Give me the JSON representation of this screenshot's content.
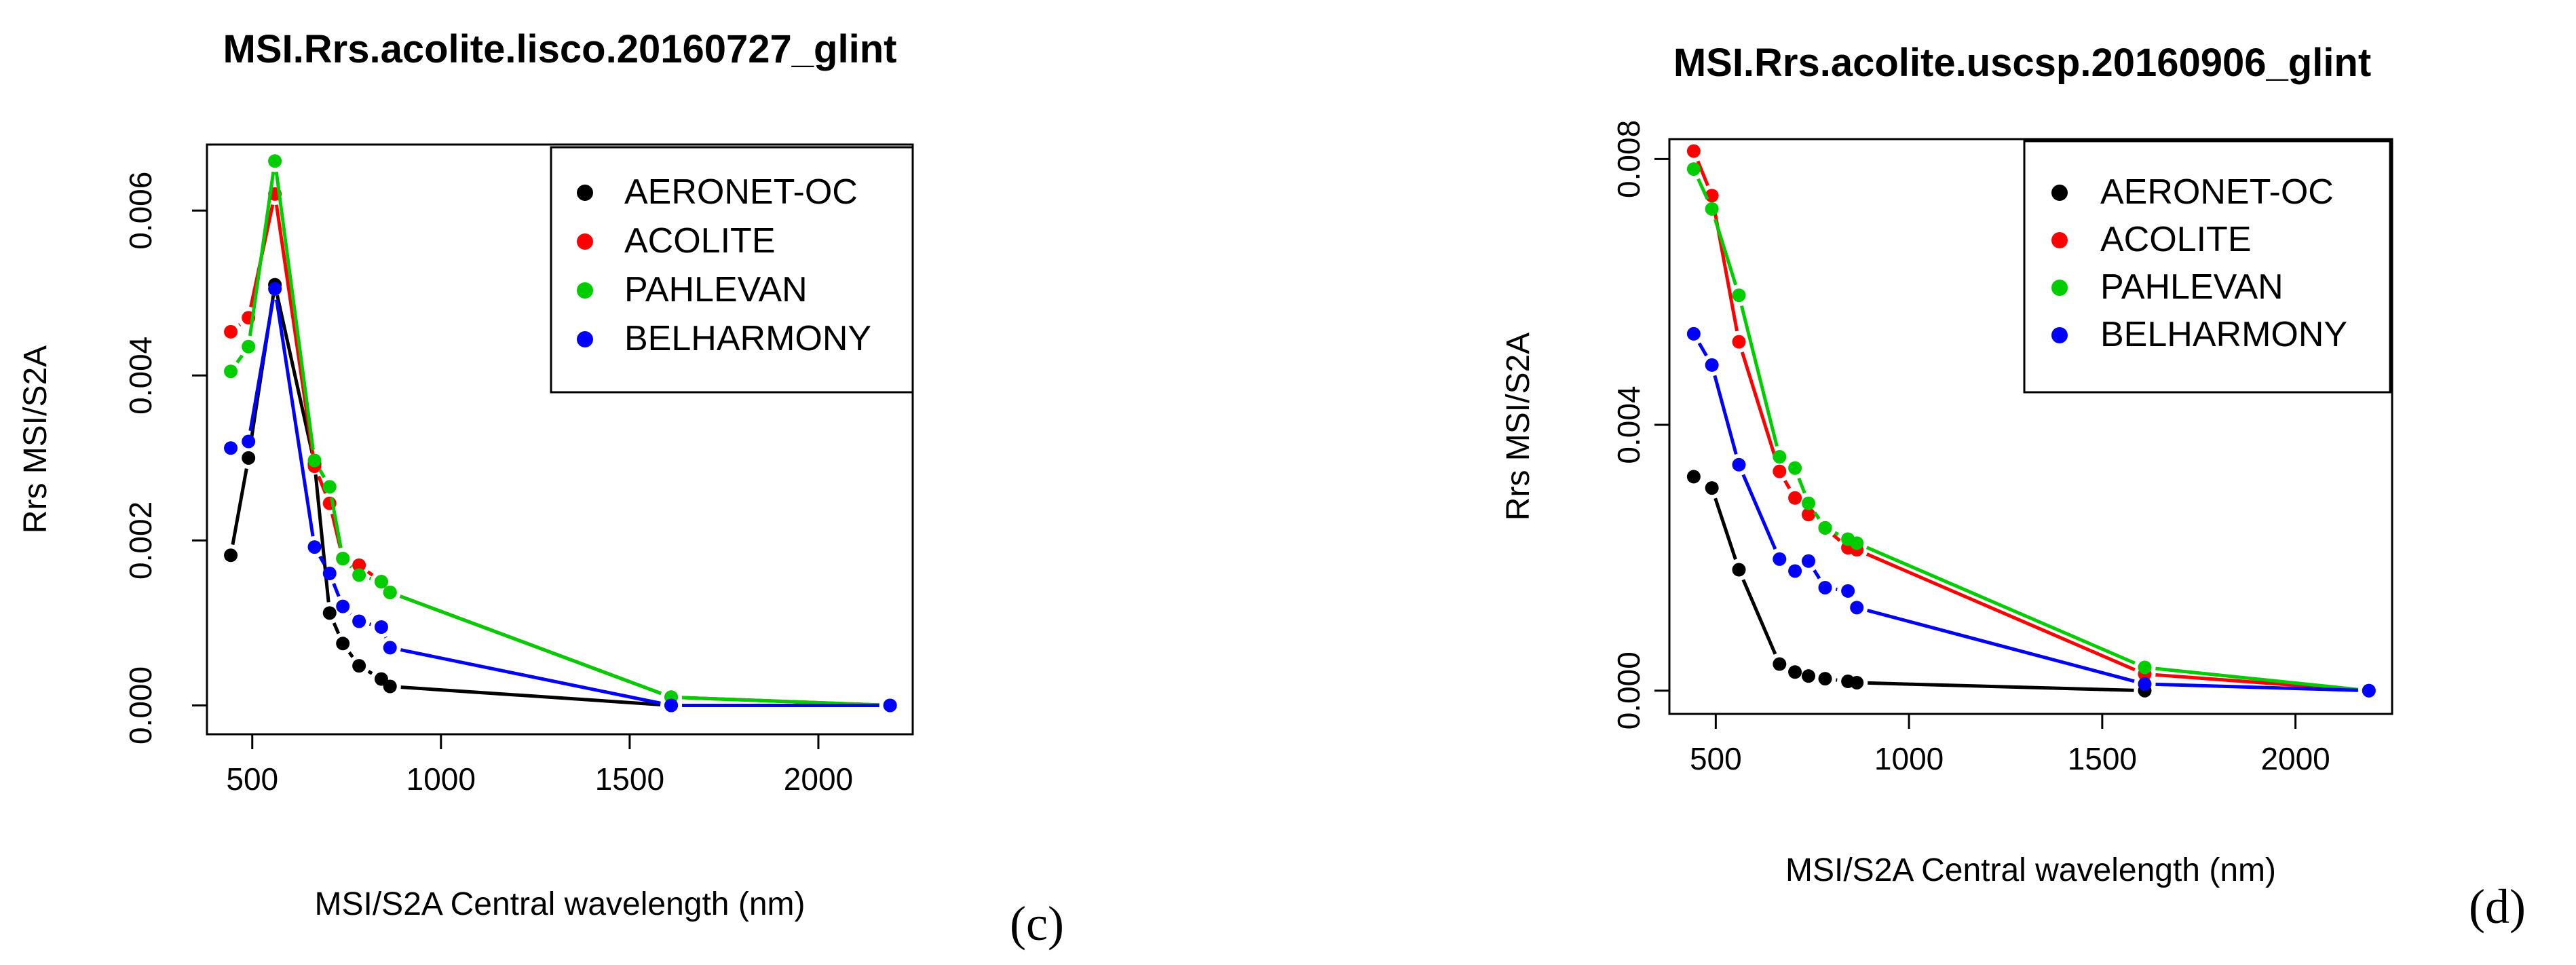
{
  "chart_data": [
    {
      "type": "line",
      "panel_label": "(c)",
      "title": "MSI.Rrs.acolite.lisco.20160727_glint",
      "xlabel": "MSI/S2A Central wavelength (nm)",
      "ylabel": "Rrs MSI/S2A",
      "xlim": [
        380,
        2250
      ],
      "ylim": [
        -0.00035,
        0.0068
      ],
      "xticks": [
        500,
        1000,
        1500,
        2000
      ],
      "xtick_labels": [
        "500",
        "1000",
        "1500",
        "2000"
      ],
      "yticks": [
        0,
        0.002,
        0.004,
        0.006
      ],
      "ytick_labels": [
        "0.000",
        "0.002",
        "0.004",
        "0.006"
      ],
      "legend_position": "top-right",
      "x": [
        443,
        490,
        560,
        665,
        705,
        740,
        783,
        842,
        865,
        1610,
        2190
      ],
      "series": [
        {
          "name": "AERONET-OC",
          "color": "#000000",
          "values": [
            0.00182,
            0.003,
            0.0051,
            0.00293,
            0.00112,
            0.00075,
            0.00048,
            0.00032,
            0.00023,
            0.0,
            null
          ]
        },
        {
          "name": "ACOLITE",
          "color": "#ff0000",
          "values": [
            0.00453,
            0.0047,
            0.0062,
            0.0029,
            0.00245,
            0.00178,
            0.0017,
            0.0015,
            0.00137,
            0.0001,
            0.0
          ]
        },
        {
          "name": "PAHLEVAN",
          "color": "#00cd00",
          "values": [
            0.00405,
            0.00435,
            0.0066,
            0.00297,
            0.00265,
            0.00178,
            0.00158,
            0.0015,
            0.00137,
            0.0001,
            0.0
          ]
        },
        {
          "name": "BELHARMONY",
          "color": "#0000ff",
          "values": [
            0.00312,
            0.0032,
            0.00505,
            0.00192,
            0.0016,
            0.0012,
            0.00102,
            0.00095,
            0.0007,
            0.0,
            0.0
          ]
        }
      ]
    },
    {
      "type": "line",
      "panel_label": "(d)",
      "title": "MSI.Rrs.acolite.uscsp.20160906_glint",
      "xlabel": "MSI/S2A Central wavelength (nm)",
      "ylabel": "Rrs MSI/S2A",
      "xlim": [
        380,
        2250
      ],
      "ylim": [
        -0.00035,
        0.0083
      ],
      "xticks": [
        500,
        1000,
        1500,
        2000
      ],
      "xtick_labels": [
        "500",
        "1000",
        "1500",
        "2000"
      ],
      "yticks": [
        0,
        0.004,
        0.008
      ],
      "ytick_labels": [
        "0.000",
        "0.004",
        "0.008"
      ],
      "legend_position": "top-right",
      "x": [
        443,
        490,
        560,
        665,
        705,
        740,
        783,
        842,
        865,
        1610,
        2190
      ],
      "series": [
        {
          "name": "AERONET-OC",
          "color": "#000000",
          "values": [
            0.00322,
            0.00305,
            0.00182,
            0.0004,
            0.00028,
            0.00022,
            0.00018,
            0.00014,
            0.00012,
            0.0,
            null
          ]
        },
        {
          "name": "ACOLITE",
          "color": "#ff0000",
          "values": [
            0.00812,
            0.00745,
            0.00525,
            0.0033,
            0.0029,
            0.00265,
            0.00245,
            0.00215,
            0.00212,
            0.00025,
            0.0
          ]
        },
        {
          "name": "PAHLEVAN",
          "color": "#00cd00",
          "values": [
            0.00785,
            0.00725,
            0.00595,
            0.00352,
            0.00335,
            0.00282,
            0.00245,
            0.00228,
            0.00222,
            0.00035,
            0.0
          ]
        },
        {
          "name": "BELHARMONY",
          "color": "#0000ff",
          "values": [
            0.00537,
            0.0049,
            0.0034,
            0.00198,
            0.0018,
            0.00195,
            0.00155,
            0.0015,
            0.00125,
            0.0001,
            0.0
          ]
        }
      ]
    }
  ]
}
